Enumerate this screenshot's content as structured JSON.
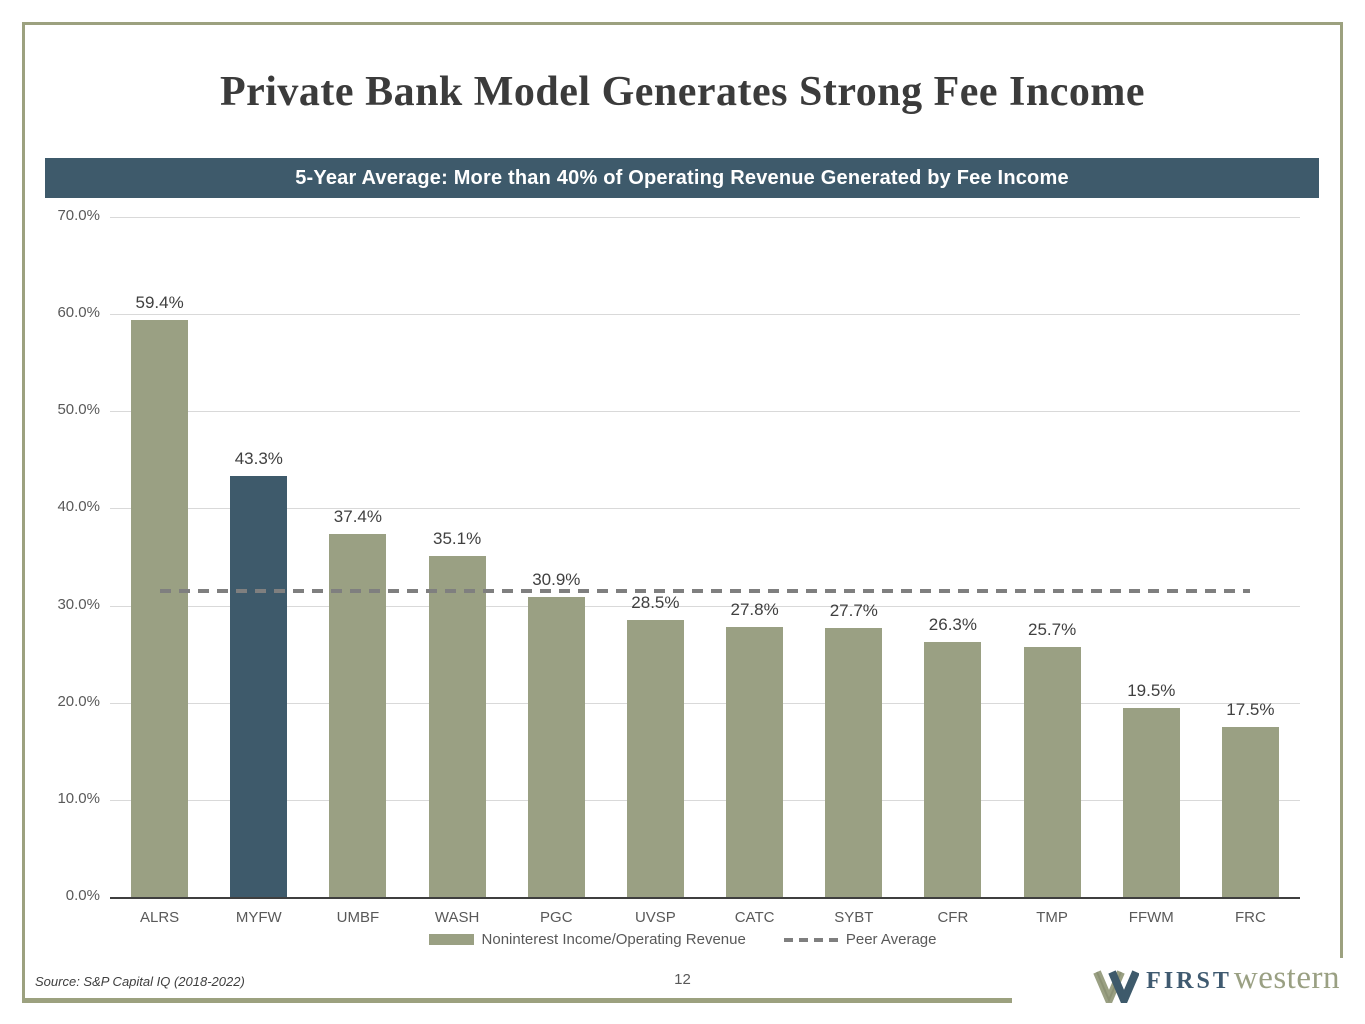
{
  "slide": {
    "title": "Private Bank Model Generates Strong Fee Income",
    "banner": "5-Year Average: More than 40% of Operating Revenue Generated by Fee Income",
    "source": "Source: S&P Capital IQ (2018-2022)",
    "page_number": "12",
    "logo": {
      "first": "FIRST",
      "western": "western"
    }
  },
  "colors": {
    "teal": "#3E5A6B",
    "olive": "#9AA083",
    "border-olive": "#9CA17F",
    "grid": "#D9D9D9",
    "axis": "#3F3F3F",
    "ticktext": "#595959",
    "valtext": "#404040",
    "titletext": "#3B3B3B",
    "dash": "#7F7F7F",
    "bannertext": "#FFFFFF"
  },
  "chart_data": {
    "type": "bar",
    "categories": [
      "ALRS",
      "MYFW",
      "UMBF",
      "WASH",
      "PGC",
      "UVSP",
      "CATC",
      "SYBT",
      "CFR",
      "TMP",
      "FFWM",
      "FRC"
    ],
    "series": [
      {
        "name": "Noninterest Income/Operating Revenue",
        "type": "bar",
        "values": [
          59.4,
          43.3,
          37.4,
          35.1,
          30.9,
          28.5,
          27.8,
          27.7,
          26.3,
          25.7,
          19.5,
          17.5
        ]
      },
      {
        "name": "Peer Average",
        "type": "dashed-line",
        "value": 31.5
      }
    ],
    "value_labels": [
      "59.4%",
      "43.3%",
      "37.4%",
      "35.1%",
      "30.9%",
      "28.5%",
      "27.8%",
      "27.7%",
      "26.3%",
      "25.7%",
      "19.5%",
      "17.5%"
    ],
    "highlight_index": 1,
    "highlight_category": "MYFW",
    "ylim": [
      0,
      70
    ],
    "ytick_labels": [
      "70.0%",
      "60.0%",
      "50.0%",
      "40.0%",
      "30.0%",
      "20.0%",
      "10.0%",
      "0.0%"
    ],
    "grid": true,
    "legend_position": "bottom"
  }
}
